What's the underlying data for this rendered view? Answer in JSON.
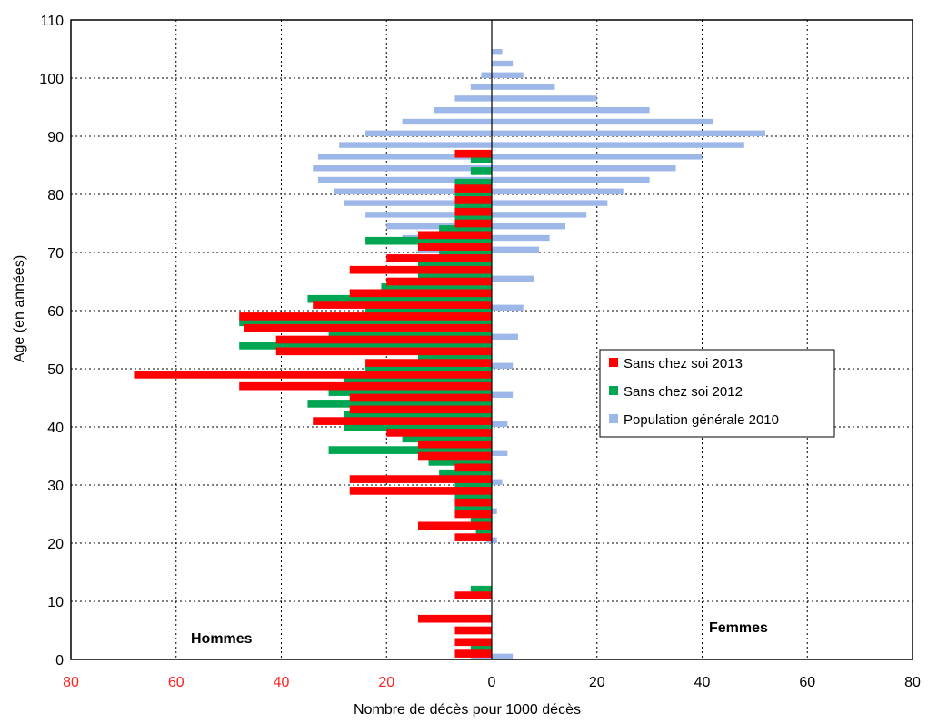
{
  "chart_data": {
    "type": "bar",
    "orientation": "horizontal",
    "xlabel": "Nombre de décès pour 1000 décès",
    "ylabel": "Age (en années)",
    "side_labels": {
      "left": "Hommes",
      "right": "Femmes"
    },
    "xlim": [
      -80,
      80
    ],
    "ylim": [
      0,
      110
    ],
    "x_ticks": [
      {
        "value": -80,
        "label": "80"
      },
      {
        "value": -60,
        "label": "60"
      },
      {
        "value": -40,
        "label": "40"
      },
      {
        "value": -20,
        "label": "20"
      },
      {
        "value": 0,
        "label": "0"
      },
      {
        "value": 20,
        "label": "20"
      },
      {
        "value": 40,
        "label": "40"
      },
      {
        "value": 60,
        "label": "60"
      },
      {
        "value": 80,
        "label": "80"
      }
    ],
    "y_ticks": [
      0,
      10,
      20,
      30,
      40,
      50,
      60,
      70,
      80,
      90,
      100,
      110
    ],
    "grid": true,
    "legend_position": "right",
    "series": [
      {
        "name": "Population générale 2010",
        "color": "#9db8e8",
        "men_ages": [
          0,
          20,
          25,
          30,
          35,
          40,
          45,
          50,
          55,
          60,
          65,
          70,
          72,
          74,
          76,
          78,
          80,
          82,
          84,
          86,
          88,
          90,
          92,
          94,
          96,
          98,
          100
        ],
        "men_values": [
          4,
          1,
          2,
          3,
          4,
          5,
          6,
          7,
          8,
          9,
          11,
          14,
          17,
          20,
          24,
          28,
          30,
          33,
          34,
          33,
          29,
          24,
          17,
          11,
          7,
          4,
          2
        ],
        "women_ages": [
          0,
          20,
          25,
          30,
          35,
          40,
          45,
          50,
          55,
          60,
          65,
          70,
          72,
          74,
          76,
          78,
          80,
          82,
          84,
          86,
          88,
          90,
          92,
          94,
          96,
          98,
          100,
          102,
          104
        ],
        "women_values": [
          4,
          1,
          1,
          2,
          3,
          3,
          4,
          4,
          5,
          6,
          8,
          9,
          11,
          14,
          18,
          22,
          25,
          30,
          35,
          40,
          48,
          52,
          42,
          30,
          20,
          12,
          6,
          4,
          2
        ]
      },
      {
        "name": "Sans chez soi 2012",
        "color": "#00a651",
        "ages": [
          2,
          4,
          6,
          8,
          10,
          12,
          14,
          16,
          18,
          20,
          22,
          24,
          26,
          28,
          30,
          32,
          34,
          36,
          38,
          40,
          42,
          44,
          46,
          48,
          50,
          52,
          54,
          56,
          58,
          60,
          62,
          64,
          66,
          68,
          70,
          72,
          74,
          76,
          78,
          80,
          82,
          84,
          86
        ],
        "values": [
          4,
          0,
          0,
          0,
          0,
          4,
          0,
          0,
          0,
          0,
          3,
          4,
          7,
          7,
          7,
          10,
          12,
          31,
          17,
          28,
          28,
          35,
          31,
          28,
          24,
          14,
          48,
          31,
          48,
          24,
          35,
          21,
          14,
          14,
          10,
          24,
          10,
          7,
          7,
          7,
          7,
          4,
          4
        ]
      },
      {
        "name": "Sans chez soi 2013",
        "color": "#ff0000",
        "ages": [
          1,
          3,
          5,
          7,
          9,
          11,
          13,
          15,
          17,
          19,
          21,
          23,
          25,
          27,
          29,
          31,
          33,
          35,
          37,
          39,
          41,
          43,
          45,
          47,
          49,
          51,
          53,
          55,
          57,
          59,
          61,
          63,
          65,
          67,
          69,
          71,
          73,
          75,
          77,
          79,
          81,
          83,
          85,
          87
        ],
        "values": [
          7,
          7,
          7,
          14,
          0,
          7,
          0,
          0,
          0,
          0,
          7,
          14,
          7,
          7,
          27,
          27,
          7,
          14,
          14,
          20,
          34,
          27,
          27,
          48,
          68,
          24,
          41,
          41,
          47,
          48,
          34,
          27,
          20,
          27,
          20,
          14,
          14,
          7,
          7,
          7,
          7,
          0,
          0,
          7
        ]
      }
    ]
  }
}
